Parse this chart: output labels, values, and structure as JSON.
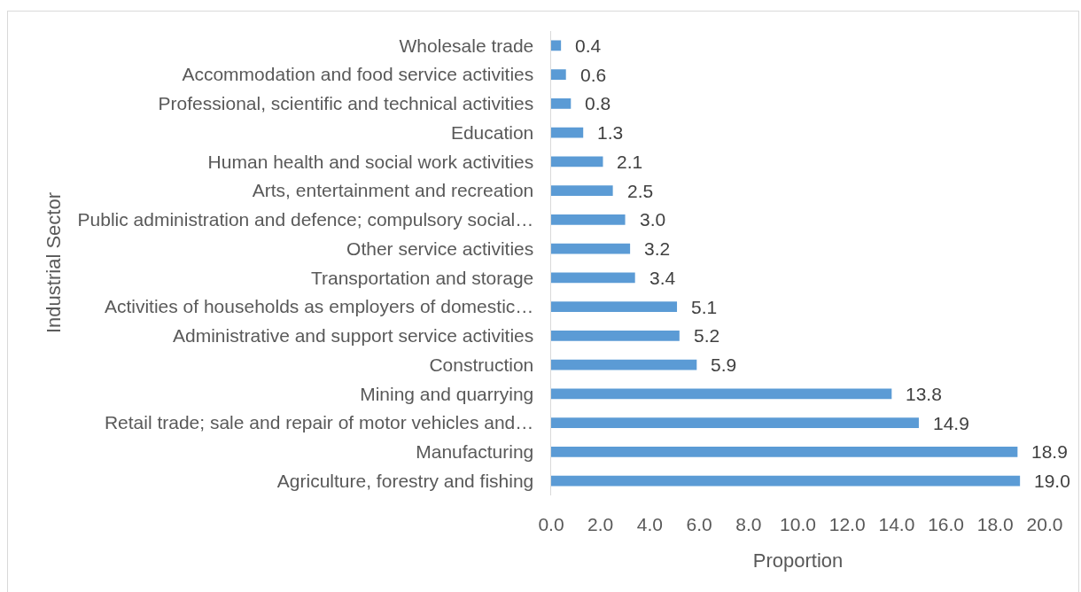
{
  "chart_data": {
    "type": "bar",
    "orientation": "horizontal",
    "categories": [
      "Wholesale trade",
      "Accommodation and food service activities",
      "Professional, scientific and technical activities",
      "Education",
      "Human health and social work activities",
      "Arts, entertainment and recreation",
      "Public administration and defence; compulsory social…",
      "Other service activities",
      "Transportation and storage",
      "Activities of households as employers of domestic…",
      "Administrative and support service activities",
      "Construction",
      "Mining and quarrying",
      "Retail trade; sale and repair of motor vehicles and…",
      "Manufacturing",
      "Agriculture, forestry and fishing"
    ],
    "values": [
      0.4,
      0.6,
      0.8,
      1.3,
      2.1,
      2.5,
      3.0,
      3.2,
      3.4,
      5.1,
      5.2,
      5.9,
      13.8,
      14.9,
      18.9,
      19.0
    ],
    "value_labels": [
      "0.4",
      "0.6",
      "0.8",
      "1.3",
      "2.1",
      "2.5",
      "3.0",
      "3.2",
      "3.4",
      "5.1",
      "5.2",
      "5.9",
      "13.8",
      "14.9",
      "18.9",
      "19.0"
    ],
    "color": "#5b9bd5",
    "xlabel": "Proportion",
    "ylabel": "Industrial Sector",
    "xlim": [
      0,
      20
    ],
    "xticks": [
      {
        "value": 0,
        "label": "0.0"
      },
      {
        "value": 2,
        "label": "2.0"
      },
      {
        "value": 4,
        "label": "4.0"
      },
      {
        "value": 6,
        "label": "6.0"
      },
      {
        "value": 8,
        "label": "8.0"
      },
      {
        "value": 10,
        "label": "10.0"
      },
      {
        "value": 12,
        "label": "12.0"
      },
      {
        "value": 14,
        "label": "14.0"
      },
      {
        "value": 16,
        "label": "16.0"
      },
      {
        "value": 18,
        "label": "18.0"
      },
      {
        "value": 20,
        "label": "20.0"
      }
    ]
  }
}
